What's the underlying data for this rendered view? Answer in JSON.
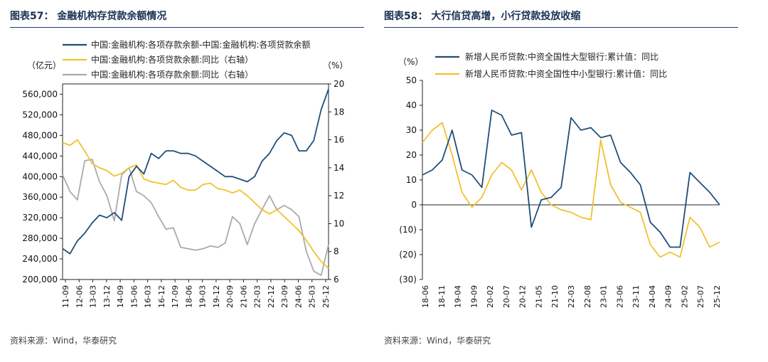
{
  "left": {
    "title": "图表57：  金融机构存贷款余额情况",
    "source": "资料来源：Wind，华泰研究",
    "chart_data": {
      "type": "line",
      "y_left_unit": "（亿元）",
      "y_right_unit": "（%）",
      "y_left_range": [
        200000,
        580000
      ],
      "y_left_ticks": [
        "560,000",
        "520,000",
        "480,000",
        "440,000",
        "400,000",
        "360,000",
        "320,000",
        "280,000",
        "240,000",
        "200,000"
      ],
      "y_right_range": [
        6,
        20
      ],
      "y_right_ticks": [
        "20",
        "18",
        "16",
        "14",
        "12",
        "10",
        "8",
        "6"
      ],
      "x_labels": [
        "11-09",
        "12-06",
        "13-03",
        "13-12",
        "14-09",
        "15-06",
        "16-03",
        "16-12",
        "17-09",
        "18-06",
        "19-03",
        "19-12",
        "20-09",
        "21-06",
        "22-03",
        "22-12",
        "23-09",
        "24-06",
        "25-03",
        "25-12"
      ],
      "series": [
        {
          "name": "中国:金融机构:各项存款余额-中国:金融机构:各项贷款余额",
          "axis": "left",
          "color": "#1f4e79",
          "values": [
            260000,
            250000,
            275000,
            290000,
            310000,
            325000,
            320000,
            330000,
            315000,
            400000,
            420000,
            405000,
            445000,
            435000,
            450000,
            450000,
            445000,
            445000,
            440000,
            430000,
            420000,
            410000,
            400000,
            400000,
            395000,
            390000,
            400000,
            430000,
            445000,
            470000,
            485000,
            480000,
            450000,
            450000,
            470000,
            530000,
            570000
          ]
        },
        {
          "name": "中国:金融机构:各项贷款余额:同比（右轴）",
          "axis": "right",
          "color": "#f2c12e",
          "values": [
            15.8,
            15.6,
            16.0,
            15.2,
            14.3,
            14.0,
            13.8,
            13.4,
            13.6,
            14.0,
            14.2,
            13.2,
            13.0,
            12.9,
            12.8,
            13.1,
            12.6,
            12.4,
            12.4,
            12.8,
            12.9,
            12.5,
            12.4,
            12.2,
            12.4,
            12.0,
            11.5,
            11.0,
            10.7,
            11.0,
            10.5,
            10.0,
            9.5,
            8.8,
            8.0,
            7.3,
            6.8
          ]
        },
        {
          "name": "中国:金融机构:各项存款余额:同比（右轴）",
          "axis": "right",
          "color": "#aaaaaa",
          "values": [
            13.5,
            12.3,
            11.7,
            14.5,
            14.6,
            13.0,
            12.0,
            10.2,
            13.5,
            14.0,
            12.3,
            12.0,
            11.5,
            10.5,
            9.6,
            9.7,
            8.3,
            8.2,
            8.1,
            8.2,
            8.4,
            8.3,
            8.6,
            10.5,
            10.0,
            8.5,
            10.0,
            11.0,
            12.0,
            11.0,
            11.3,
            11.0,
            10.5,
            8.0,
            6.6,
            6.3,
            8.5
          ]
        }
      ]
    }
  },
  "right": {
    "title": "图表58：  大行信贷高增，小行贷款投放收缩",
    "source": "资料来源：Wind，华泰研究",
    "chart_data": {
      "type": "line",
      "y_unit": "（%）",
      "y_range": [
        -30,
        50
      ],
      "y_ticks": [
        "50",
        "40",
        "30",
        "20",
        "10",
        "0",
        "(10)",
        "(20)",
        "(30)"
      ],
      "x_labels": [
        "18-06",
        "18-11",
        "19-04",
        "19-09",
        "20-02",
        "20-07",
        "20-12",
        "21-05",
        "21-10",
        "22-03",
        "22-08",
        "23-01",
        "23-06",
        "23-11",
        "24-04",
        "24-09",
        "25-02",
        "25-07",
        "25-12"
      ],
      "series": [
        {
          "name": "新增人民币贷款:中资全国性大型银行:累计值：同比",
          "color": "#1f4e79",
          "values": [
            12,
            14,
            18,
            30,
            14,
            12,
            7,
            38,
            36,
            28,
            29,
            -9,
            2,
            3,
            7,
            35,
            30,
            31,
            27,
            28,
            17,
            13,
            8,
            -7,
            -11,
            -17,
            -17,
            13,
            9,
            5,
            0
          ]
        },
        {
          "name": "新增人民币贷款:中资全国性中小型银行:累计值：同比",
          "color": "#f2c12e",
          "values": [
            25,
            30,
            33,
            20,
            5,
            -1,
            3,
            12,
            17,
            14,
            6,
            14,
            5,
            0,
            -2,
            -3,
            -5,
            -6,
            26,
            8,
            1,
            -1,
            -3,
            -16,
            -21,
            -19,
            -21,
            -5,
            -9,
            -17,
            -15
          ]
        }
      ]
    }
  }
}
